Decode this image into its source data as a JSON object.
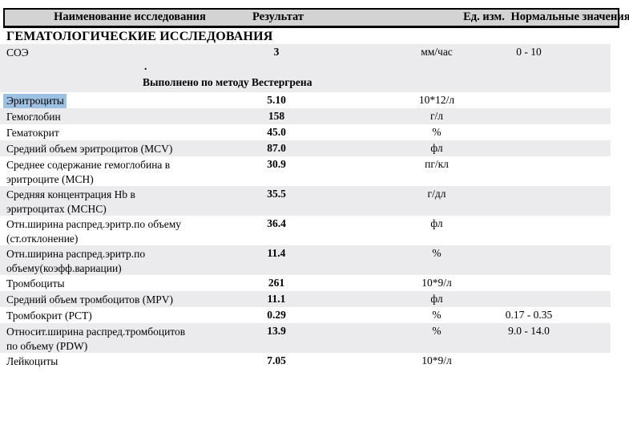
{
  "table": {
    "columns": {
      "name": "Наименование исследования",
      "result": "Результат",
      "unit": "Ед. изм.",
      "normal": "Нормальные значения"
    },
    "section_title": "ГЕМАТОЛОГИЧЕСКИЕ ИССЛЕДОВАНИЯ",
    "rows": [
      {
        "name_line1": "СОЭ",
        "result": "3",
        "unit": "мм/час",
        "normal": "0 - 10",
        "note_dot": ".",
        "note": "Выполнено по методу Вестергрена"
      },
      {
        "name_line1": "Эритроциты",
        "result": "5.10",
        "unit": "10*12/л"
      },
      {
        "name_line1": "Гемоглобин",
        "result": "158",
        "unit": "г/л"
      },
      {
        "name_line1": "Гематокрит",
        "result": "45.0",
        "unit": "%"
      },
      {
        "name_line1": "Средний объем эритроцитов (MCV)",
        "result": "87.0",
        "unit": "фл"
      },
      {
        "name_line1": "Среднее содержание гемоглобина в",
        "name_line2": "эритроците (MCH)",
        "result": "30.9",
        "unit": "пг/кл"
      },
      {
        "name_line1": "Средняя концентрация Hb в",
        "name_line2": "эритроцитах (MCHC)",
        "result": "35.5",
        "unit": "г/дл"
      },
      {
        "name_line1": "Отн.ширина распред.эритр.по объему",
        "name_line2": "(ст.отклонение)",
        "result": "36.4",
        "unit": "фл"
      },
      {
        "name_line1": "Отн.ширина распред.эритр.по",
        "name_line2": "объему(коэфф.вариации)",
        "result": "11.4",
        "unit": "%"
      },
      {
        "name_line1": "Тромбоциты",
        "result": "261",
        "unit": "10*9/л"
      },
      {
        "name_line1": "Средний объем тромбоцитов (MPV)",
        "result": "11.1",
        "unit": "фл"
      },
      {
        "name_line1": "Тромбокрит (PCT)",
        "result": "0.29",
        "unit": "%",
        "normal": "0.17 - 0.35"
      },
      {
        "name_line1": "Относит.ширина распред.тромбоцитов",
        "name_line2": "по объему (PDW)",
        "result": "13.9",
        "unit": "%",
        "normal": "9.0 - 14.0"
      },
      {
        "name_line1": "Лейкоциты",
        "result": "7.05",
        "unit": "10*9/л"
      }
    ]
  },
  "colors": {
    "header_bg": "#d3d3d3",
    "row_shaded_bg": "#ebebee",
    "selection_highlight": "#9dc1e3",
    "border": "#000000"
  }
}
